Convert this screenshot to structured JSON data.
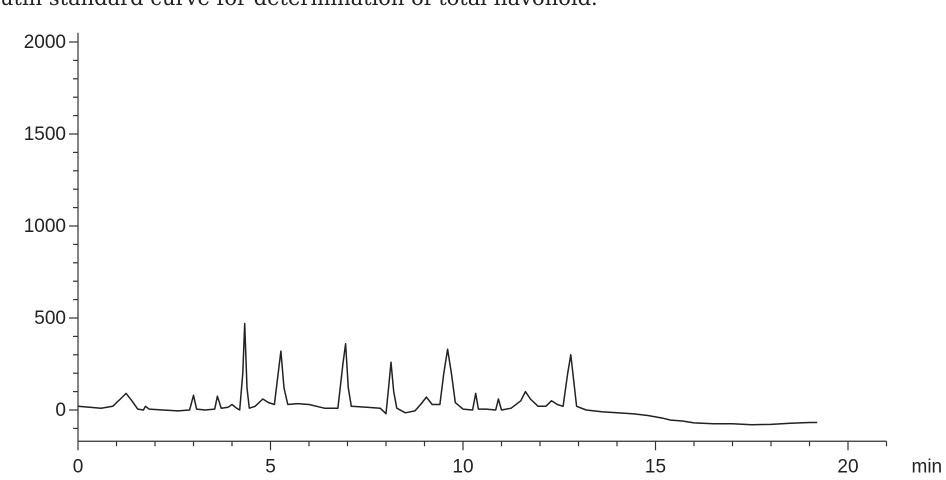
{
  "caption": "utin standard curve for determination of total flavonoid.",
  "chart_data": {
    "type": "line",
    "title": "",
    "xlabel": "min",
    "ylabel": "",
    "xlim": [
      0,
      21
    ],
    "ylim": [
      -170,
      2050
    ],
    "x_ticks": [
      0,
      5,
      10,
      15,
      20
    ],
    "x_tick_labels": [
      "0",
      "5",
      "10",
      "15",
      "20"
    ],
    "y_ticks": [
      0,
      500,
      1000,
      1500,
      2000
    ],
    "y_tick_labels": [
      "0",
      "500",
      "1000",
      "1500",
      "2000"
    ],
    "grid": false,
    "series": [
      {
        "values": [
          [
            0.0,
            20
          ],
          [
            0.3,
            15
          ],
          [
            0.6,
            10
          ],
          [
            0.9,
            20
          ],
          [
            1.1,
            60
          ],
          [
            1.25,
            90
          ],
          [
            1.4,
            50
          ],
          [
            1.55,
            5
          ],
          [
            1.7,
            0
          ],
          [
            1.75,
            20
          ],
          [
            1.85,
            5
          ],
          [
            2.2,
            0
          ],
          [
            2.6,
            -5
          ],
          [
            2.9,
            0
          ],
          [
            3.0,
            80
          ],
          [
            3.08,
            5
          ],
          [
            3.3,
            0
          ],
          [
            3.55,
            5
          ],
          [
            3.62,
            75
          ],
          [
            3.72,
            10
          ],
          [
            3.9,
            15
          ],
          [
            4.0,
            30
          ],
          [
            4.12,
            10
          ],
          [
            4.2,
            0
          ],
          [
            4.28,
            200
          ],
          [
            4.33,
            470
          ],
          [
            4.39,
            120
          ],
          [
            4.45,
            10
          ],
          [
            4.6,
            20
          ],
          [
            4.8,
            60
          ],
          [
            4.95,
            40
          ],
          [
            5.1,
            30
          ],
          [
            5.2,
            200
          ],
          [
            5.27,
            320
          ],
          [
            5.35,
            120
          ],
          [
            5.45,
            30
          ],
          [
            5.7,
            35
          ],
          [
            6.0,
            30
          ],
          [
            6.4,
            10
          ],
          [
            6.75,
            10
          ],
          [
            6.88,
            250
          ],
          [
            6.95,
            360
          ],
          [
            7.02,
            120
          ],
          [
            7.1,
            20
          ],
          [
            7.5,
            15
          ],
          [
            7.85,
            10
          ],
          [
            8.0,
            -20
          ],
          [
            8.08,
            150
          ],
          [
            8.13,
            260
          ],
          [
            8.2,
            100
          ],
          [
            8.28,
            10
          ],
          [
            8.5,
            -15
          ],
          [
            8.75,
            -5
          ],
          [
            8.9,
            30
          ],
          [
            9.05,
            70
          ],
          [
            9.2,
            30
          ],
          [
            9.4,
            30
          ],
          [
            9.5,
            200
          ],
          [
            9.6,
            330
          ],
          [
            9.7,
            200
          ],
          [
            9.8,
            40
          ],
          [
            10.0,
            5
          ],
          [
            10.25,
            0
          ],
          [
            10.33,
            90
          ],
          [
            10.4,
            5
          ],
          [
            10.6,
            5
          ],
          [
            10.85,
            0
          ],
          [
            10.92,
            60
          ],
          [
            11.0,
            0
          ],
          [
            11.25,
            10
          ],
          [
            11.5,
            50
          ],
          [
            11.62,
            100
          ],
          [
            11.75,
            60
          ],
          [
            11.95,
            20
          ],
          [
            12.15,
            20
          ],
          [
            12.3,
            50
          ],
          [
            12.45,
            30
          ],
          [
            12.6,
            20
          ],
          [
            12.72,
            200
          ],
          [
            12.8,
            300
          ],
          [
            12.88,
            150
          ],
          [
            12.95,
            20
          ],
          [
            13.2,
            0
          ],
          [
            13.6,
            -10
          ],
          [
            14.0,
            -15
          ],
          [
            14.4,
            -20
          ],
          [
            14.8,
            -30
          ],
          [
            15.2,
            -45
          ],
          [
            15.4,
            -55
          ],
          [
            15.7,
            -60
          ],
          [
            16.0,
            -70
          ],
          [
            16.5,
            -75
          ],
          [
            17.0,
            -75
          ],
          [
            17.5,
            -80
          ],
          [
            18.0,
            -78
          ],
          [
            18.5,
            -72
          ],
          [
            19.0,
            -68
          ],
          [
            19.2,
            -68
          ]
        ]
      }
    ]
  }
}
